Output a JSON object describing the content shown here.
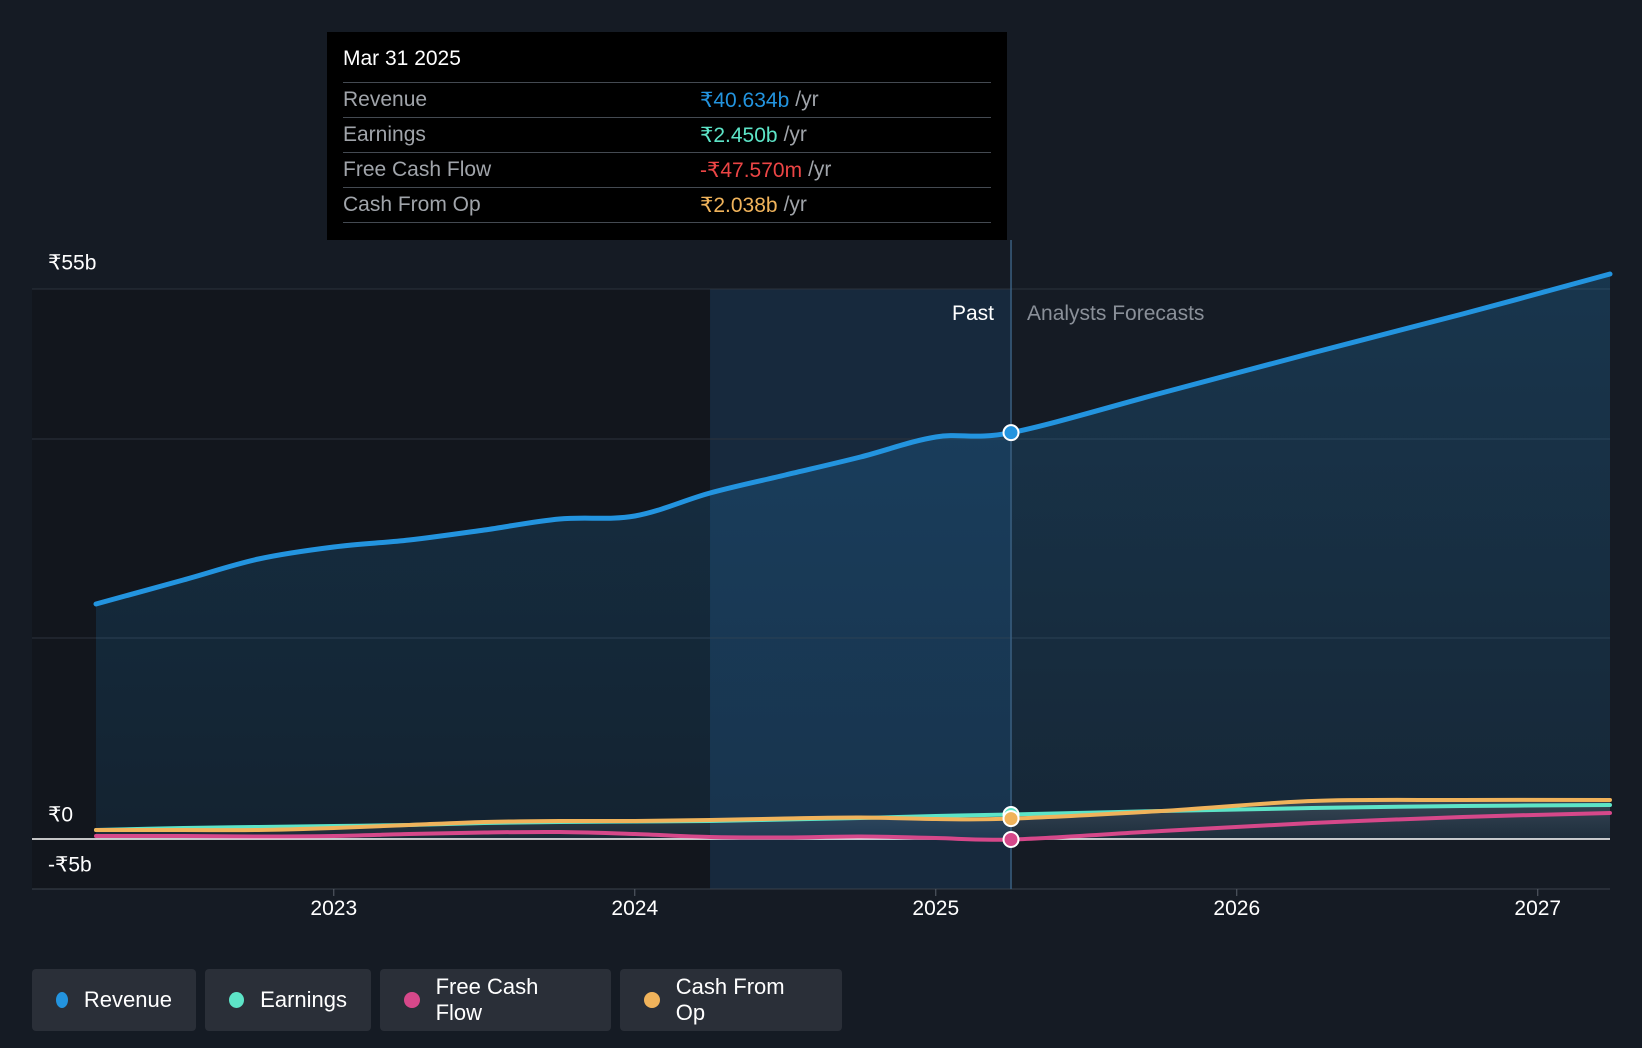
{
  "tooltip": {
    "date": "Mar 31 2025",
    "rows": [
      {
        "label": "Revenue",
        "value": "₹40.634b",
        "unit": "/yr",
        "color": "#2394df"
      },
      {
        "label": "Earnings",
        "value": "₹2.450b",
        "unit": "/yr",
        "color": "#5de4c7"
      },
      {
        "label": "Free Cash Flow",
        "value": "-₹47.570m",
        "unit": "/yr",
        "color": "#ec4545"
      },
      {
        "label": "Cash From Op",
        "value": "₹2.038b",
        "unit": "/yr",
        "color": "#f0b35b"
      }
    ]
  },
  "regions": {
    "past_label": "Past",
    "forecast_label": "Analysts Forecasts"
  },
  "legend": [
    {
      "label": "Revenue",
      "color": "#2394df"
    },
    {
      "label": "Earnings",
      "color": "#5de4c7"
    },
    {
      "label": "Free Cash Flow",
      "color": "#d6488a"
    },
    {
      "label": "Cash From Op",
      "color": "#f0b35b"
    }
  ],
  "chart_data": {
    "type": "line",
    "title": "",
    "xlabel": "",
    "ylabel": "",
    "x_ticks": [
      "2023",
      "2024",
      "2025",
      "2026",
      "2027"
    ],
    "x_tick_values": [
      2023,
      2024,
      2025,
      2026,
      2027
    ],
    "y_tick_labels": [
      "₹55b",
      "₹0",
      "-₹5b"
    ],
    "y_tick_values": [
      55,
      0,
      -5
    ],
    "xlim": [
      2022.21,
      2027.24
    ],
    "ylim": [
      -5,
      55
    ],
    "past_shade_range": [
      2024.25,
      2025.25
    ],
    "divider_x": 2025.25,
    "series": [
      {
        "name": "Revenue",
        "color": "#2394df",
        "x": [
          2022.21,
          2022.5,
          2022.75,
          2023.0,
          2023.25,
          2023.5,
          2023.75,
          2024.0,
          2024.25,
          2024.5,
          2024.75,
          2025.0,
          2025.25,
          2025.75,
          2026.25,
          2026.75,
          2027.24
        ],
        "y": [
          23.5,
          25.9,
          28.0,
          29.2,
          29.9,
          30.9,
          32.0,
          32.3,
          34.6,
          36.4,
          38.2,
          40.2,
          40.634,
          44.6,
          48.6,
          52.5,
          56.5
        ]
      },
      {
        "name": "Earnings",
        "color": "#5de4c7",
        "x": [
          2022.21,
          2022.5,
          2022.75,
          2023.0,
          2023.25,
          2023.5,
          2023.75,
          2024.0,
          2024.25,
          2024.5,
          2024.75,
          2025.0,
          2025.25,
          2025.75,
          2026.25,
          2026.75,
          2027.24
        ],
        "y": [
          0.9,
          1.1,
          1.2,
          1.3,
          1.4,
          1.6,
          1.7,
          1.75,
          1.8,
          1.95,
          2.1,
          2.3,
          2.45,
          2.8,
          3.1,
          3.3,
          3.4
        ]
      },
      {
        "name": "Free Cash Flow",
        "color": "#d6488a",
        "x": [
          2022.21,
          2022.5,
          2022.75,
          2023.0,
          2023.25,
          2023.5,
          2023.75,
          2024.0,
          2024.25,
          2024.5,
          2024.75,
          2025.0,
          2025.25,
          2025.75,
          2026.25,
          2026.75,
          2027.24
        ],
        "y": [
          0.3,
          0.3,
          0.25,
          0.3,
          0.5,
          0.65,
          0.7,
          0.5,
          0.2,
          0.15,
          0.25,
          0.1,
          -0.048,
          0.8,
          1.6,
          2.2,
          2.6
        ]
      },
      {
        "name": "Cash From Op",
        "color": "#f0b35b",
        "x": [
          2022.21,
          2022.5,
          2022.75,
          2023.0,
          2023.25,
          2023.5,
          2023.75,
          2024.0,
          2024.25,
          2024.5,
          2024.75,
          2025.0,
          2025.25,
          2025.75,
          2026.25,
          2026.75,
          2027.24
        ],
        "y": [
          0.9,
          0.9,
          0.9,
          1.1,
          1.4,
          1.7,
          1.8,
          1.8,
          1.9,
          2.05,
          2.15,
          2.0,
          2.038,
          2.8,
          3.8,
          3.9,
          3.9
        ]
      }
    ],
    "highlight_x": 2025.25
  }
}
